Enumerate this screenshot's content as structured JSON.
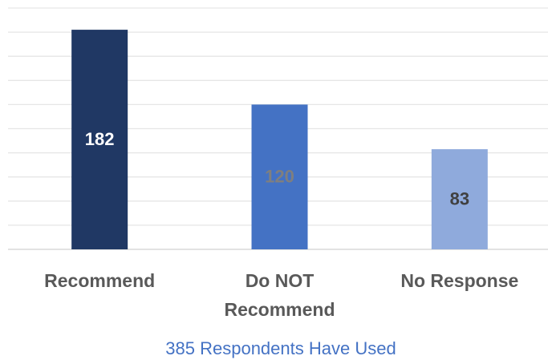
{
  "chart_data": {
    "type": "bar",
    "categories": [
      "Recommend",
      "Do NOT Recommend",
      "No Response"
    ],
    "values": [
      182,
      120,
      83
    ],
    "colors": [
      "#203864",
      "#4472c4",
      "#8faadc"
    ],
    "label_colors": [
      "#ffffff",
      "#7f7f7f",
      "#404040"
    ],
    "xlabel": "385 Respondents Have Used",
    "ylim": [
      0,
      200
    ],
    "yticks": [
      0,
      20,
      40,
      60,
      80,
      100,
      120,
      140,
      160,
      180,
      200
    ],
    "grid": true
  }
}
